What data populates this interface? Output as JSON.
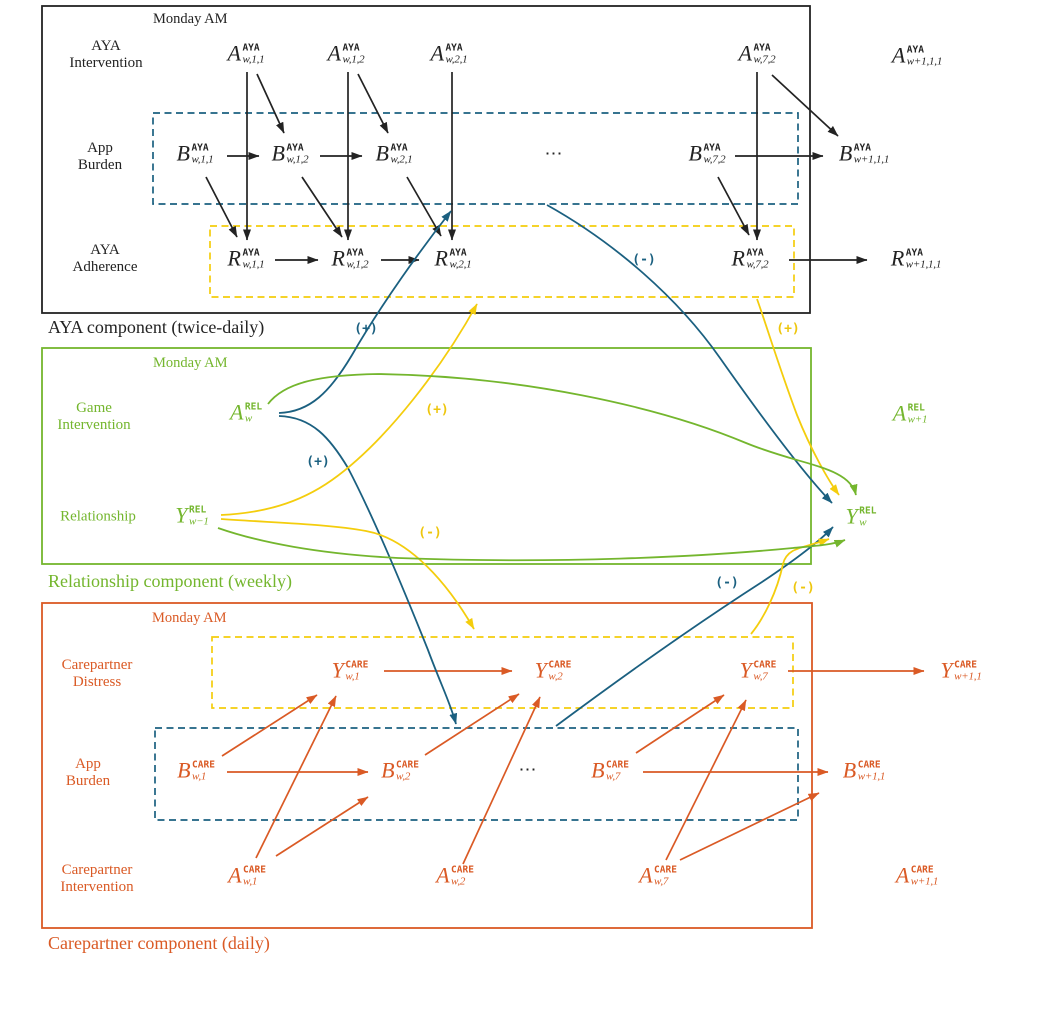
{
  "colors": {
    "aya_ink": "#232323",
    "relationship_green": "#74b62e",
    "carepartner_orange": "#da5a25",
    "burden_blue": "#1b6080",
    "adherence_yellow": "#f4cd0d"
  },
  "aya": {
    "time_label": "Monday AM",
    "rows": {
      "intervention": [
        "AYA",
        "Intervention"
      ],
      "burden": [
        "App",
        "Burden"
      ],
      "adherence": [
        "AYA",
        "Adherence"
      ]
    },
    "dots": "⋯",
    "caption": "AYA component (twice-daily)"
  },
  "relationship": {
    "time_label": "Monday AM",
    "rows": {
      "intervention": [
        "Game",
        "Intervention"
      ],
      "relationship": [
        "Relationship"
      ]
    },
    "caption": "Relationship component (weekly)"
  },
  "carepartner": {
    "time_label": "Monday AM",
    "rows": {
      "distress": [
        "Carepartner",
        "Distress"
      ],
      "burden": [
        "App",
        "Burden"
      ],
      "intervention": [
        "Carepartner",
        "Intervention"
      ]
    },
    "dots": "⋯",
    "caption": "Carepartner component (daily)"
  },
  "signs": {
    "plus": "(+)",
    "minus": "(-)"
  },
  "nodes": {
    "aya_a_w11": {
      "base": "A",
      "sup": "AYA",
      "sub": "w,1,1"
    },
    "aya_a_w12": {
      "base": "A",
      "sup": "AYA",
      "sub": "w,1,2"
    },
    "aya_a_w21": {
      "base": "A",
      "sup": "AYA",
      "sub": "w,2,1"
    },
    "aya_a_w72": {
      "base": "A",
      "sup": "AYA",
      "sub": "w,7,2"
    },
    "aya_a_next": {
      "base": "A",
      "sup": "AYA",
      "sub": "w+1,1,1"
    },
    "aya_b_w11": {
      "base": "B",
      "sup": "AYA",
      "sub": "w,1,1"
    },
    "aya_b_w12": {
      "base": "B",
      "sup": "AYA",
      "sub": "w,1,2"
    },
    "aya_b_w21": {
      "base": "B",
      "sup": "AYA",
      "sub": "w,2,1"
    },
    "aya_b_w72": {
      "base": "B",
      "sup": "AYA",
      "sub": "w,7,2"
    },
    "aya_b_next": {
      "base": "B",
      "sup": "AYA",
      "sub": "w+1,1,1"
    },
    "aya_r_w11": {
      "base": "R",
      "sup": "AYA",
      "sub": "w,1,1"
    },
    "aya_r_w12": {
      "base": "R",
      "sup": "AYA",
      "sub": "w,1,2"
    },
    "aya_r_w21": {
      "base": "R",
      "sup": "AYA",
      "sub": "w,2,1"
    },
    "aya_r_w72": {
      "base": "R",
      "sup": "AYA",
      "sub": "w,7,2"
    },
    "aya_r_next": {
      "base": "R",
      "sup": "AYA",
      "sub": "w+1,1,1"
    },
    "rel_a_w": {
      "base": "A",
      "sup": "REL",
      "sub": "w"
    },
    "rel_y_prev": {
      "base": "Y",
      "sup": "REL",
      "sub": "w−1"
    },
    "rel_y_w": {
      "base": "Y",
      "sup": "REL",
      "sub": "w"
    },
    "rel_a_next": {
      "base": "A",
      "sup": "REL",
      "sub": "w+1"
    },
    "care_y_w1": {
      "base": "Y",
      "sup": "CARE",
      "sub": "w,1"
    },
    "care_y_w2": {
      "base": "Y",
      "sup": "CARE",
      "sub": "w,2"
    },
    "care_y_w7": {
      "base": "Y",
      "sup": "CARE",
      "sub": "w,7"
    },
    "care_y_next": {
      "base": "Y",
      "sup": "CARE",
      "sub": "w+1,1"
    },
    "care_b_w1": {
      "base": "B",
      "sup": "CARE",
      "sub": "w,1"
    },
    "care_b_w2": {
      "base": "B",
      "sup": "CARE",
      "sub": "w,2"
    },
    "care_b_w7": {
      "base": "B",
      "sup": "CARE",
      "sub": "w,7"
    },
    "care_b_next": {
      "base": "B",
      "sup": "CARE",
      "sub": "w+1,1"
    },
    "care_a_w1": {
      "base": "A",
      "sup": "CARE",
      "sub": "w,1"
    },
    "care_a_w2": {
      "base": "A",
      "sup": "CARE",
      "sub": "w,2"
    },
    "care_a_w7": {
      "base": "A",
      "sup": "CARE",
      "sub": "w,7"
    },
    "care_a_next": {
      "base": "A",
      "sup": "CARE",
      "sub": "w+1,1"
    }
  }
}
